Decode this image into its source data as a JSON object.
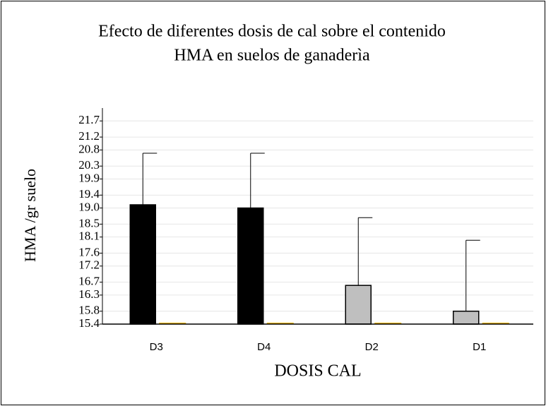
{
  "chart_data": {
    "type": "bar",
    "title": [
      "Efecto de diferentes dosis de cal sobre el contenido",
      "HMA en suelos de ganaderìa"
    ],
    "ylabel": "HMA /gr suelo",
    "xlabel": "DOSIS CAL",
    "categories": [
      "D3",
      "D4",
      "D2",
      "D1"
    ],
    "series": [
      {
        "colors": [
          "#000000",
          "#000000",
          "#bfbfbf",
          "#bfbfbf"
        ],
        "values": [
          19.1,
          19.0,
          16.6,
          15.8
        ],
        "errors": [
          1.6,
          1.7,
          2.1,
          2.2
        ]
      },
      {
        "color": "#e8b400",
        "values": [
          15.4,
          15.4,
          15.4,
          15.4
        ]
      }
    ],
    "ylim": [
      15.4,
      22.1
    ],
    "yticks": [
      15.4,
      15.8,
      16.3,
      16.7,
      17.2,
      17.6,
      18.1,
      18.5,
      {
        "value": 19.0,
        "label": "19.0"
      },
      19.4,
      19.9,
      20.3,
      20.8,
      21.2,
      21.7
    ],
    "grid": true
  }
}
